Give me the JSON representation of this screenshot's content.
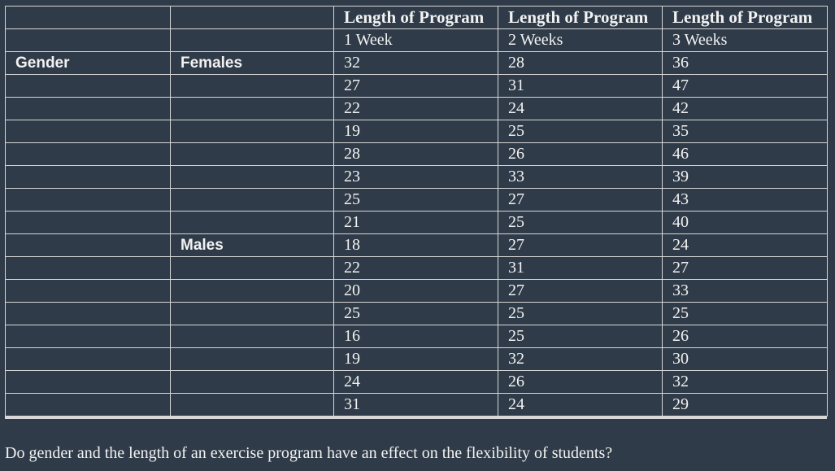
{
  "table": {
    "header_top": [
      "Length of Program",
      "Length of Program",
      "Length of Program"
    ],
    "header_sub": [
      "1 Week",
      "2 Weeks",
      "3 Weeks"
    ],
    "row_label": "Gender",
    "groups": [
      {
        "label": "Females",
        "rows": [
          [
            "32",
            "28",
            "36"
          ],
          [
            "27",
            "31",
            "47"
          ],
          [
            "22",
            "24",
            "42"
          ],
          [
            "19",
            "25",
            "35"
          ],
          [
            "28",
            "26",
            "46"
          ],
          [
            "23",
            "33",
            "39"
          ],
          [
            "25",
            "27",
            "43"
          ],
          [
            "21",
            "25",
            "40"
          ]
        ]
      },
      {
        "label": "Males",
        "rows": [
          [
            "18",
            "27",
            "24"
          ],
          [
            "22",
            "31",
            "27"
          ],
          [
            "20",
            "27",
            "33"
          ],
          [
            "25",
            "25",
            "25"
          ],
          [
            "16",
            "25",
            "26"
          ],
          [
            "19",
            "32",
            "30"
          ],
          [
            "24",
            "26",
            "32"
          ],
          [
            "31",
            "24",
            "29"
          ]
        ]
      }
    ]
  },
  "question": "Do gender and the length of an exercise program have an effect on the flexibility of students?"
}
